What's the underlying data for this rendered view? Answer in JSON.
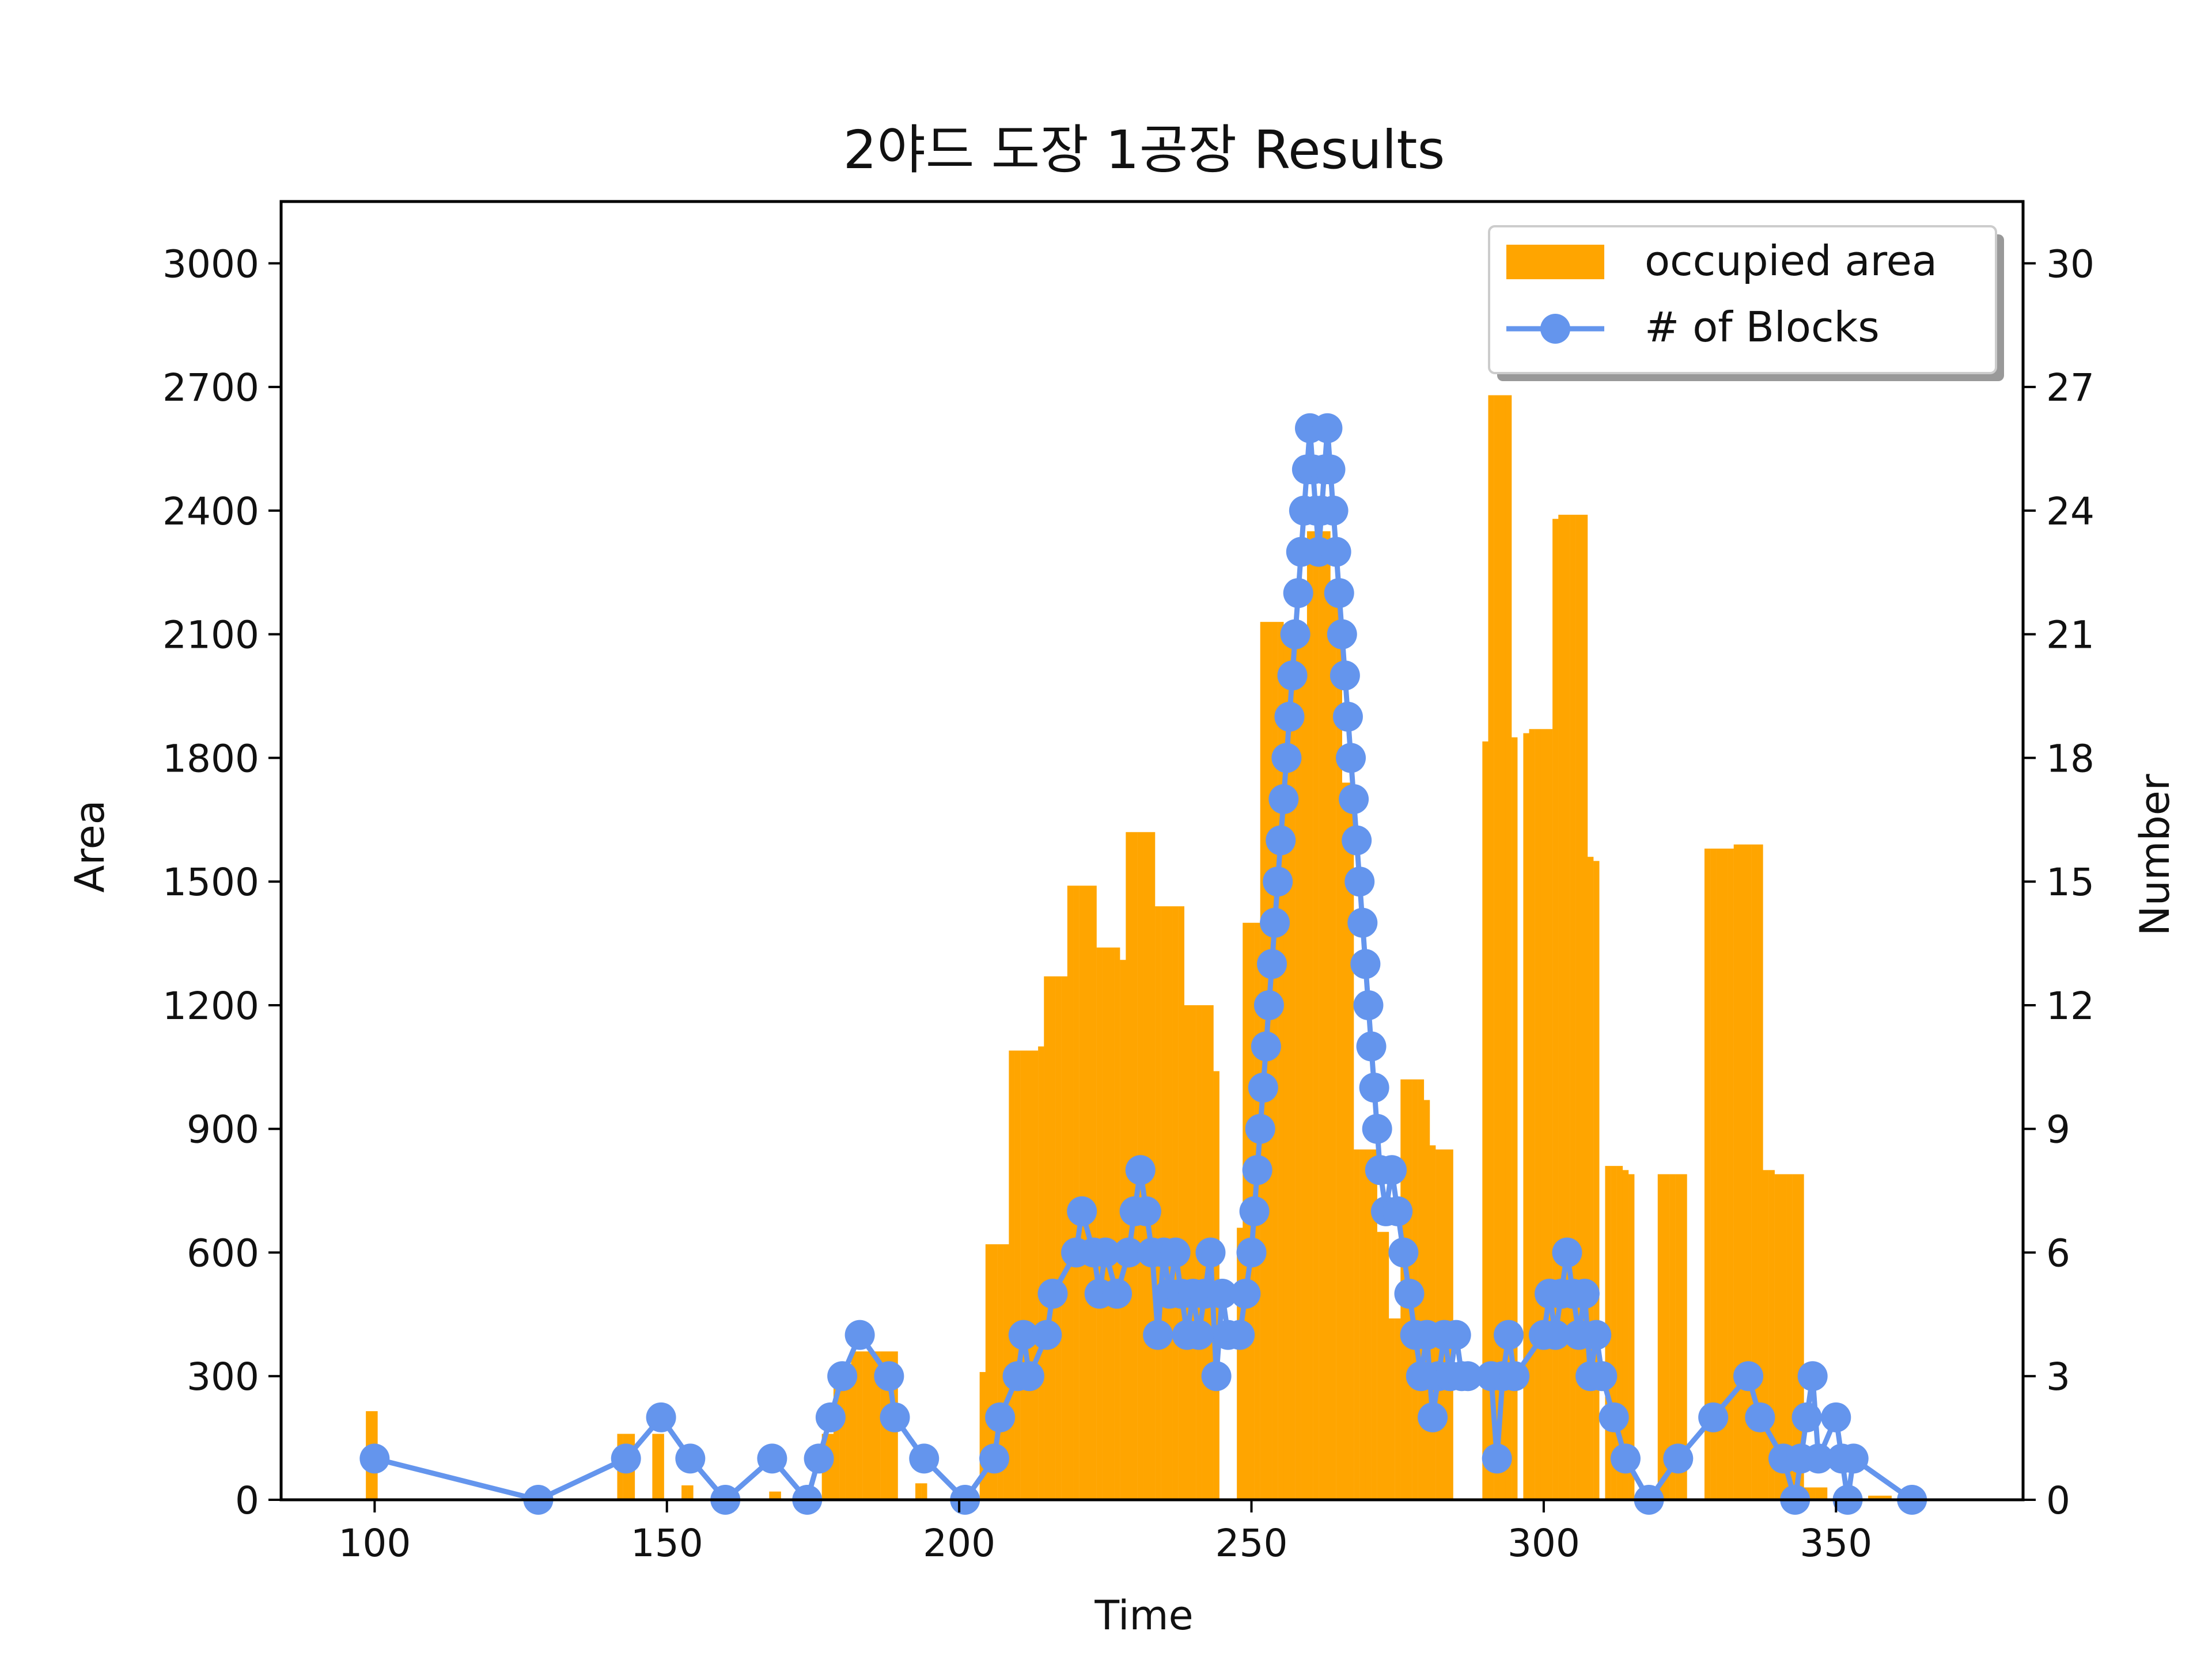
{
  "chart_data": {
    "type": "bar",
    "title": "2야드 도장 1공장 Results",
    "xlabel": "Time",
    "ylabel": "Area",
    "y2label": "Number",
    "xlim": [
      84,
      382
    ],
    "ylim": [
      0,
      3150
    ],
    "y2lim": [
      0,
      31.5
    ],
    "x_ticks": [
      100,
      150,
      200,
      250,
      300,
      350
    ],
    "y_ticks": [
      0,
      300,
      600,
      900,
      1200,
      1500,
      1800,
      2100,
      2400,
      2700,
      3000
    ],
    "y2_ticks": [
      0,
      3,
      6,
      9,
      12,
      15,
      18,
      21,
      24,
      27,
      30
    ],
    "legend_position": "top-right",
    "colors": {
      "bars": "#FFA500",
      "line": "#6495ED",
      "axes": "#000000"
    },
    "series": [
      {
        "name": "occupied area",
        "kind": "bar",
        "axis": "left",
        "points": [
          [
            99,
            215
          ],
          [
            100,
            215
          ],
          [
            142,
            160
          ],
          [
            143,
            160
          ],
          [
            144,
            160
          ],
          [
            148,
            160
          ],
          [
            149,
            160
          ],
          [
            153,
            35
          ],
          [
            154,
            35
          ],
          [
            168,
            20
          ],
          [
            169,
            20
          ],
          [
            177,
            160
          ],
          [
            178,
            160
          ],
          [
            179,
            290
          ],
          [
            180,
            290
          ],
          [
            181,
            290
          ],
          [
            182,
            360
          ],
          [
            183,
            360
          ],
          [
            184,
            360
          ],
          [
            185,
            360
          ],
          [
            186,
            360
          ],
          [
            187,
            360
          ],
          [
            188,
            360
          ],
          [
            189,
            360
          ],
          [
            193,
            40
          ],
          [
            194,
            40
          ],
          [
            204,
            310
          ],
          [
            205,
            620
          ],
          [
            206,
            620
          ],
          [
            207,
            620
          ],
          [
            208,
            620
          ],
          [
            209,
            1090
          ],
          [
            210,
            1090
          ],
          [
            211,
            1090
          ],
          [
            212,
            1090
          ],
          [
            213,
            1090
          ],
          [
            214,
            1100
          ],
          [
            215,
            1270
          ],
          [
            216,
            1270
          ],
          [
            217,
            1270
          ],
          [
            218,
            1270
          ],
          [
            219,
            1490
          ],
          [
            220,
            1490
          ],
          [
            221,
            1490
          ],
          [
            222,
            1490
          ],
          [
            223,
            1490
          ],
          [
            224,
            1340
          ],
          [
            225,
            1340
          ],
          [
            226,
            1340
          ],
          [
            227,
            1340
          ],
          [
            228,
            1310
          ],
          [
            229,
            1620
          ],
          [
            230,
            1620
          ],
          [
            231,
            1620
          ],
          [
            232,
            1620
          ],
          [
            233,
            1620
          ],
          [
            234,
            1440
          ],
          [
            235,
            1440
          ],
          [
            236,
            1440
          ],
          [
            237,
            1440
          ],
          [
            238,
            1440
          ],
          [
            239,
            1200
          ],
          [
            240,
            1200
          ],
          [
            241,
            1200
          ],
          [
            242,
            1200
          ],
          [
            243,
            1200
          ],
          [
            244,
            1040
          ],
          [
            248,
            660
          ],
          [
            249,
            1400
          ],
          [
            250,
            1400
          ],
          [
            251,
            1400
          ],
          [
            252,
            2130
          ],
          [
            253,
            2130
          ],
          [
            254,
            2130
          ],
          [
            255,
            2130
          ],
          [
            256,
            2110
          ],
          [
            257,
            2110
          ],
          [
            258,
            2110
          ],
          [
            259,
            2110
          ],
          [
            260,
            2350
          ],
          [
            261,
            2350
          ],
          [
            262,
            2350
          ],
          [
            263,
            2350
          ],
          [
            264,
            2170
          ],
          [
            265,
            2170
          ],
          [
            266,
            1740
          ],
          [
            267,
            1740
          ],
          [
            268,
            850
          ],
          [
            269,
            850
          ],
          [
            270,
            850
          ],
          [
            271,
            850
          ],
          [
            272,
            650
          ],
          [
            273,
            650
          ],
          [
            274,
            440
          ],
          [
            275,
            440
          ],
          [
            276,
            1020
          ],
          [
            277,
            1020
          ],
          [
            278,
            1020
          ],
          [
            279,
            1020
          ],
          [
            280,
            970
          ],
          [
            281,
            860
          ],
          [
            282,
            850
          ],
          [
            283,
            850
          ],
          [
            284,
            850
          ],
          [
            290,
            1840
          ],
          [
            291,
            2680
          ],
          [
            292,
            2680
          ],
          [
            293,
            2680
          ],
          [
            294,
            2680
          ],
          [
            295,
            1850
          ],
          [
            297,
            1860
          ],
          [
            298,
            1870
          ],
          [
            299,
            1870
          ],
          [
            300,
            1870
          ],
          [
            301,
            1870
          ],
          [
            302,
            2380
          ],
          [
            303,
            2390
          ],
          [
            304,
            2390
          ],
          [
            305,
            2390
          ],
          [
            306,
            2390
          ],
          [
            307,
            2390
          ],
          [
            308,
            1560
          ],
          [
            309,
            1550
          ],
          [
            311,
            810
          ],
          [
            312,
            810
          ],
          [
            313,
            810
          ],
          [
            314,
            800
          ],
          [
            315,
            790
          ],
          [
            320,
            790
          ],
          [
            321,
            790
          ],
          [
            322,
            790
          ],
          [
            323,
            790
          ],
          [
            324,
            790
          ],
          [
            328,
            1580
          ],
          [
            329,
            1580
          ],
          [
            330,
            1580
          ],
          [
            331,
            1580
          ],
          [
            332,
            1580
          ],
          [
            333,
            1590
          ],
          [
            334,
            1590
          ],
          [
            335,
            1590
          ],
          [
            336,
            1590
          ],
          [
            337,
            1590
          ],
          [
            338,
            800
          ],
          [
            339,
            800
          ],
          [
            340,
            790
          ],
          [
            341,
            790
          ],
          [
            342,
            790
          ],
          [
            343,
            790
          ],
          [
            344,
            790
          ],
          [
            345,
            30
          ],
          [
            346,
            30
          ],
          [
            347,
            30
          ],
          [
            348,
            30
          ],
          [
            350,
            10
          ],
          [
            351,
            10
          ],
          [
            352,
            10
          ],
          [
            353,
            10
          ],
          [
            356,
            10
          ],
          [
            357,
            10
          ],
          [
            358,
            10
          ],
          [
            359,
            10
          ]
        ]
      },
      {
        "name": "# of Blocks",
        "kind": "line",
        "axis": "right",
        "points": [
          [
            100,
            1
          ],
          [
            128,
            0
          ],
          [
            143,
            1
          ],
          [
            149,
            2
          ],
          [
            154,
            1
          ],
          [
            160,
            0
          ],
          [
            168,
            1
          ],
          [
            174,
            0
          ],
          [
            176,
            1
          ],
          [
            178,
            2
          ],
          [
            180,
            3
          ],
          [
            183,
            4
          ],
          [
            188,
            3
          ],
          [
            189,
            2
          ],
          [
            194,
            1
          ],
          [
            201,
            0
          ],
          [
            206,
            1
          ],
          [
            207,
            2
          ],
          [
            210,
            3
          ],
          [
            211,
            4
          ],
          [
            212,
            3
          ],
          [
            215,
            4
          ],
          [
            216,
            5
          ],
          [
            220,
            6
          ],
          [
            221,
            7
          ],
          [
            223,
            6
          ],
          [
            224,
            5
          ],
          [
            225,
            6
          ],
          [
            227,
            5
          ],
          [
            229,
            6
          ],
          [
            230,
            7
          ],
          [
            231,
            8
          ],
          [
            232,
            7
          ],
          [
            233,
            6
          ],
          [
            234,
            4
          ],
          [
            235,
            6
          ],
          [
            236,
            5
          ],
          [
            237,
            6
          ],
          [
            238,
            5
          ],
          [
            239,
            4
          ],
          [
            240,
            5
          ],
          [
            241,
            4
          ],
          [
            242,
            5
          ],
          [
            243,
            6
          ],
          [
            244,
            3
          ],
          [
            245,
            5
          ],
          [
            246,
            4
          ],
          [
            248,
            4
          ],
          [
            249,
            5
          ],
          [
            250,
            6
          ],
          [
            250.5,
            7
          ],
          [
            251,
            8
          ],
          [
            251.5,
            9
          ],
          [
            252,
            10
          ],
          [
            252.5,
            11
          ],
          [
            253,
            12
          ],
          [
            253.5,
            13
          ],
          [
            254,
            14
          ],
          [
            254.5,
            15
          ],
          [
            255,
            16
          ],
          [
            255.5,
            17
          ],
          [
            256,
            18
          ],
          [
            256.5,
            19
          ],
          [
            257,
            20
          ],
          [
            257.5,
            21
          ],
          [
            258,
            22
          ],
          [
            258.5,
            23
          ],
          [
            259,
            24
          ],
          [
            259.5,
            25
          ],
          [
            260,
            26
          ],
          [
            260.5,
            25
          ],
          [
            261,
            24
          ],
          [
            261.5,
            23
          ],
          [
            262,
            24
          ],
          [
            262.5,
            25
          ],
          [
            263,
            26
          ],
          [
            263.5,
            25
          ],
          [
            264,
            24
          ],
          [
            264.5,
            23
          ],
          [
            265,
            22
          ],
          [
            265.5,
            21
          ],
          [
            266,
            20
          ],
          [
            266.5,
            19
          ],
          [
            267,
            18
          ],
          [
            267.5,
            17
          ],
          [
            268,
            16
          ],
          [
            268.5,
            15
          ],
          [
            269,
            14
          ],
          [
            269.5,
            13
          ],
          [
            270,
            12
          ],
          [
            270.5,
            11
          ],
          [
            271,
            10
          ],
          [
            271.5,
            9
          ],
          [
            272,
            8
          ],
          [
            273,
            7
          ],
          [
            274,
            8
          ],
          [
            275,
            7
          ],
          [
            276,
            6
          ],
          [
            277,
            5
          ],
          [
            278,
            4
          ],
          [
            279,
            3
          ],
          [
            280,
            4
          ],
          [
            281,
            2
          ],
          [
            282,
            3
          ],
          [
            283,
            4
          ],
          [
            284,
            3
          ],
          [
            285,
            4
          ],
          [
            286,
            3
          ],
          [
            287,
            3
          ],
          [
            291,
            3
          ],
          [
            292,
            1
          ],
          [
            293,
            3
          ],
          [
            294,
            4
          ],
          [
            295,
            3
          ],
          [
            300,
            4
          ],
          [
            301,
            5
          ],
          [
            302,
            4
          ],
          [
            303,
            5
          ],
          [
            304,
            6
          ],
          [
            305,
            5
          ],
          [
            306,
            4
          ],
          [
            307,
            5
          ],
          [
            308,
            3
          ],
          [
            309,
            4
          ],
          [
            310,
            3
          ],
          [
            312,
            2
          ],
          [
            314,
            1
          ],
          [
            318,
            0
          ],
          [
            323,
            1
          ],
          [
            329,
            2
          ],
          [
            335,
            3
          ],
          [
            337,
            2
          ],
          [
            341,
            1
          ],
          [
            343,
            0
          ],
          [
            344,
            1
          ],
          [
            345,
            2
          ],
          [
            346,
            3
          ],
          [
            347,
            1
          ],
          [
            350,
            2
          ],
          [
            351,
            1
          ],
          [
            352,
            0
          ],
          [
            353,
            1
          ],
          [
            363,
            0
          ]
        ]
      }
    ]
  }
}
